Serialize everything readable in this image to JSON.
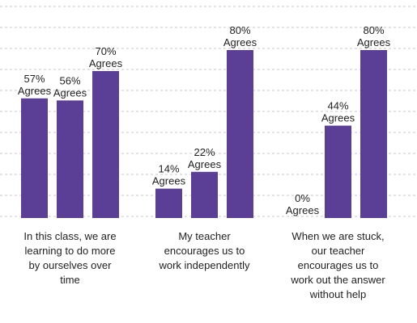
{
  "chart_data": {
    "type": "bar",
    "categories": [
      [
        "In this class, we are",
        "learning to do more",
        "by ourselves over",
        "time"
      ],
      [
        "My teacher",
        "encourages us to",
        "work independently"
      ],
      [
        "When we are stuck,",
        "our teacher",
        "encourages us to",
        "work out the answer",
        "without help"
      ]
    ],
    "series": [
      {
        "values": [
          57,
          14,
          0
        ]
      },
      {
        "values": [
          56,
          22,
          44
        ]
      },
      {
        "values": [
          70,
          80,
          80
        ]
      }
    ],
    "data_labels": [
      [
        "57%",
        "14%",
        "0%"
      ],
      [
        "56%",
        "22%",
        "44%"
      ],
      [
        "70%",
        "80%",
        "80%"
      ]
    ],
    "data_label_suffix": "Agrees",
    "ylim": [
      0,
      100
    ],
    "grid": true,
    "legend": "none",
    "bar_color": "#5b3f96",
    "grid_color": "#c8c8c8",
    "text_color": "#222222"
  }
}
